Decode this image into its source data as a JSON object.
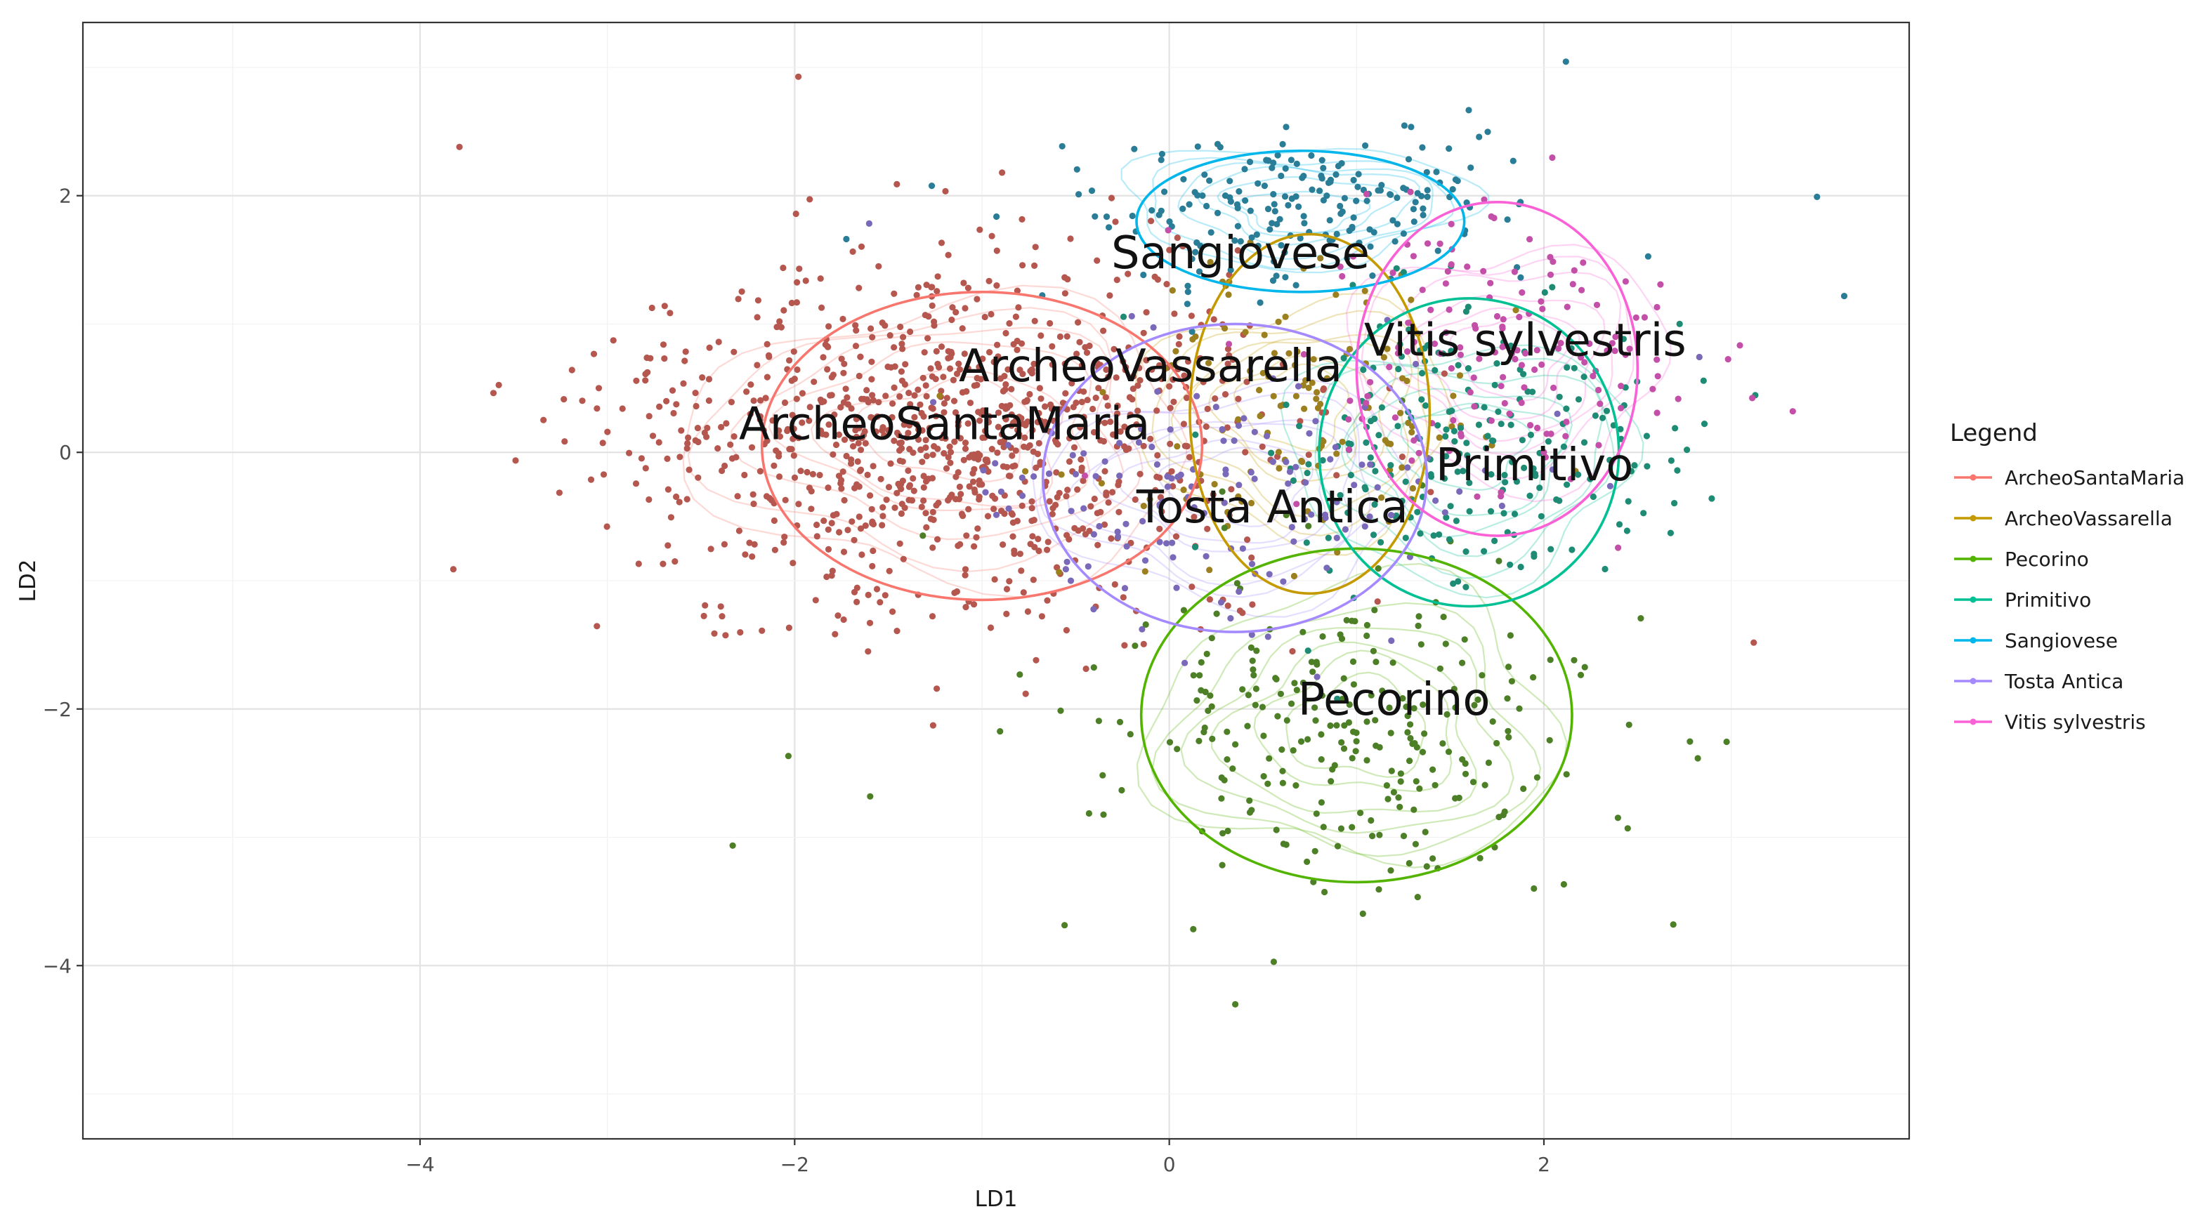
{
  "chart_data": {
    "type": "scatter",
    "title": "",
    "xlabel": "LD1",
    "ylabel": "LD2",
    "xlim": [
      -5.8,
      3.95
    ],
    "ylim": [
      -5.35,
      3.35
    ],
    "x_ticks": [
      -4,
      -2,
      0,
      2
    ],
    "y_ticks": [
      -4,
      -2,
      0,
      2
    ],
    "x_tick_labels": [
      "−4",
      "−2",
      "0",
      "2"
    ],
    "y_tick_labels": [
      "−4",
      "−2",
      "0",
      "2"
    ],
    "grid": true,
    "legend": {
      "title": "Legend",
      "position": "right"
    },
    "series": [
      {
        "name": "ArcheoSantaMaria",
        "color": "#F8766D",
        "point_color": "#B5574F",
        "center": [
          -1.2,
          0.15
        ],
        "ellipse": {
          "cx": -1.0,
          "cy": 0.05,
          "rx": 2.35,
          "ry": 1.2
        },
        "n": 1000,
        "spread": [
          0.8,
          0.65
        ],
        "seed": 11,
        "label_at": [
          -1.2,
          0.2
        ]
      },
      {
        "name": "ArcheoVassarella",
        "color": "#C49A00",
        "point_color": "#9C7F1E",
        "center": [
          0.7,
          0.3
        ],
        "ellipse": {
          "cx": 0.75,
          "cy": 0.3,
          "rx": 1.28,
          "ry": 1.4
        },
        "n": 120,
        "spread": [
          0.5,
          0.55
        ],
        "seed": 23,
        "label_at": [
          -0.1,
          0.65
        ]
      },
      {
        "name": "Pecorino",
        "color": "#53B400",
        "point_color": "#4C7F26",
        "center": [
          1.0,
          -2.15
        ],
        "ellipse": {
          "cx": 1.0,
          "cy": -2.05,
          "rx": 2.3,
          "ry": 1.3
        },
        "n": 260,
        "spread": [
          0.65,
          0.65
        ],
        "seed": 37,
        "label_at": [
          1.2,
          -1.95
        ]
      },
      {
        "name": "Primitivo",
        "color": "#00C094",
        "point_color": "#1E8C74",
        "center": [
          1.6,
          0.0
        ],
        "ellipse": {
          "cx": 1.6,
          "cy": 0.0,
          "rx": 1.6,
          "ry": 1.2
        },
        "n": 220,
        "spread": [
          0.55,
          0.55
        ],
        "seed": 41,
        "label_at": [
          1.95,
          -0.12
        ]
      },
      {
        "name": "Sangiovese",
        "color": "#00B6EB",
        "point_color": "#2A7D96",
        "center": [
          0.7,
          1.9
        ],
        "ellipse": {
          "cx": 0.7,
          "cy": 1.8,
          "rx": 1.75,
          "ry": 0.55
        },
        "n": 200,
        "spread": [
          0.55,
          0.28
        ],
        "seed": 53,
        "label_at": [
          0.38,
          1.53
        ]
      },
      {
        "name": "Tosta Antica",
        "color": "#A58AFF",
        "point_color": "#7A68B8",
        "center": [
          0.3,
          -0.3
        ],
        "ellipse": {
          "cx": 0.35,
          "cy": -0.2,
          "rx": 2.05,
          "ry": 1.2
        },
        "n": 140,
        "spread": [
          0.6,
          0.5
        ],
        "seed": 67,
        "label_at": [
          0.55,
          -0.45
        ]
      },
      {
        "name": "Vitis sylvestris",
        "color": "#FB61D7",
        "point_color": "#C44FA8",
        "center": [
          1.8,
          0.75
        ],
        "ellipse": {
          "cx": 1.75,
          "cy": 0.65,
          "rx": 1.5,
          "ry": 1.3
        },
        "n": 150,
        "spread": [
          0.5,
          0.55
        ],
        "seed": 79,
        "label_at": [
          1.9,
          0.85
        ]
      }
    ]
  }
}
